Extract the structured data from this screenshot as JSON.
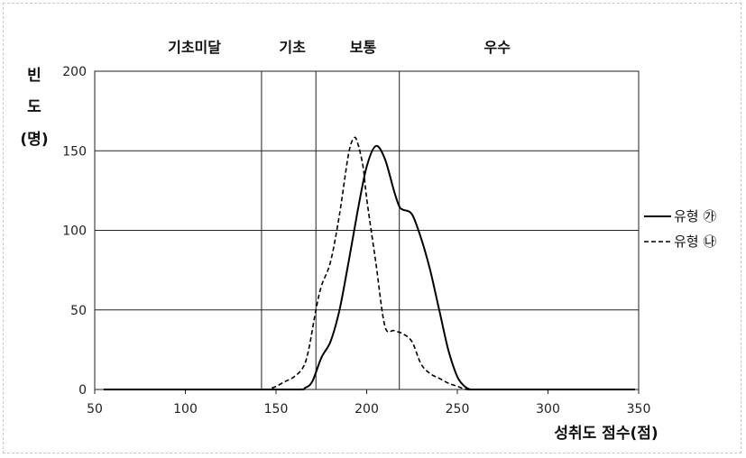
{
  "chart_data": {
    "type": "line",
    "xlabel": "성취도 점수(점)",
    "ylabel_lines": [
      "빈",
      "도",
      "(명)"
    ],
    "xlim": [
      50,
      350
    ],
    "ylim": [
      0,
      200
    ],
    "xticks": [
      50,
      100,
      150,
      200,
      250,
      300,
      350
    ],
    "yticks": [
      0,
      50,
      100,
      150,
      200
    ],
    "grid": "horizontal",
    "legend_position": "right",
    "cutoffs": [
      142,
      172,
      218
    ],
    "bands": [
      {
        "label": "기초미달",
        "center": 105
      },
      {
        "label": "기초",
        "center": 159
      },
      {
        "label": "보통",
        "center": 198
      },
      {
        "label": "우수",
        "center": 272
      }
    ],
    "series": [
      {
        "name": "유형 ㉮",
        "style": "solid",
        "color": "#000000",
        "x": [
          55,
          140,
          163,
          166,
          170,
          175,
          180,
          185,
          190,
          195,
          200,
          205,
          210,
          215,
          218,
          220,
          225,
          230,
          235,
          240,
          245,
          250,
          254,
          257,
          260,
          300,
          348
        ],
        "y": [
          0,
          0,
          0,
          1,
          5,
          20,
          30,
          50,
          80,
          112,
          140,
          153,
          145,
          125,
          115,
          113,
          110,
          95,
          75,
          50,
          25,
          8,
          2,
          0,
          0,
          0,
          0
        ]
      },
      {
        "name": "유형 ㉯",
        "style": "dashed",
        "color": "#000000",
        "x": [
          55,
          140,
          148,
          155,
          160,
          165,
          168,
          172,
          175,
          180,
          185,
          190,
          193,
          195,
          198,
          200,
          205,
          210,
          215,
          220,
          225,
          230,
          235,
          240,
          245,
          250,
          255,
          260,
          300,
          348
        ],
        "y": [
          0,
          0,
          1,
          5,
          8,
          14,
          25,
          50,
          65,
          80,
          110,
          148,
          158,
          155,
          140,
          120,
          80,
          40,
          37,
          35,
          30,
          16,
          10,
          7,
          4,
          2,
          0,
          0,
          0,
          0
        ]
      }
    ]
  }
}
